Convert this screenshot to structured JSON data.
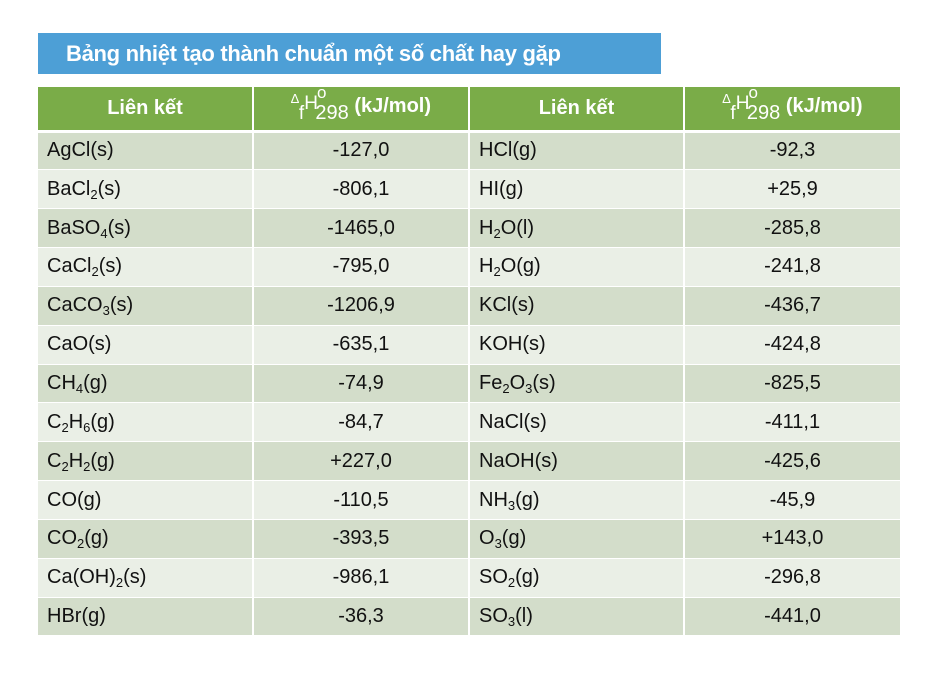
{
  "title": "Bảng nhiệt tạo thành chuẩn một số chất hay gặp",
  "header": {
    "col_name": "Liên kết",
    "col_value": {
      "delta": "∆",
      "f": "f",
      "H": "H",
      "superscript": "o",
      "subscript": "298",
      "unit": "(kJ/mol)"
    }
  },
  "rows": [
    {
      "left": {
        "name": [
          "AgCl(s)"
        ],
        "value": "-127,0"
      },
      "right": {
        "name": [
          "HCl(g)"
        ],
        "value": "-92,3"
      }
    },
    {
      "left": {
        "name": [
          "BaCl",
          "2",
          "(s)"
        ],
        "value": "-806,1"
      },
      "right": {
        "name": [
          "HI(g)"
        ],
        "value": "+25,9"
      }
    },
    {
      "left": {
        "name": [
          "BaSO",
          "4",
          "(s)"
        ],
        "value": "-1465,0"
      },
      "right": {
        "name": [
          "H",
          "2",
          "O(l)"
        ],
        "value": "-285,8"
      }
    },
    {
      "left": {
        "name": [
          "CaCl",
          "2",
          "(s)"
        ],
        "value": "-795,0"
      },
      "right": {
        "name": [
          "H",
          "2",
          "O(g)"
        ],
        "value": "-241,8"
      }
    },
    {
      "left": {
        "name": [
          "CaCO",
          "3",
          "(s)"
        ],
        "value": "-1206,9"
      },
      "right": {
        "name": [
          "KCl(s)"
        ],
        "value": "-436,7"
      }
    },
    {
      "left": {
        "name": [
          "CaO(s)"
        ],
        "value": "-635,1"
      },
      "right": {
        "name": [
          "KOH(s)"
        ],
        "value": "-424,8"
      }
    },
    {
      "left": {
        "name": [
          "CH",
          "4",
          "(g)"
        ],
        "value": "-74,9"
      },
      "right": {
        "name": [
          "Fe",
          "2",
          "O",
          "3",
          "(s)"
        ],
        "value": "-825,5"
      }
    },
    {
      "left": {
        "name": [
          "C",
          "2",
          "H",
          "6",
          "(g)"
        ],
        "value": "-84,7"
      },
      "right": {
        "name": [
          "NaCl(s)"
        ],
        "value": "-411,1"
      }
    },
    {
      "left": {
        "name": [
          "C",
          "2",
          "H",
          "2",
          "(g)"
        ],
        "value": "+227,0"
      },
      "right": {
        "name": [
          "NaOH(s)"
        ],
        "value": "-425,6"
      }
    },
    {
      "left": {
        "name": [
          "CO(g)"
        ],
        "value": "-110,5"
      },
      "right": {
        "name": [
          "NH",
          "3",
          "(g)"
        ],
        "value": "-45,9"
      }
    },
    {
      "left": {
        "name": [
          "CO",
          "2",
          "(g)"
        ],
        "value": "-393,5"
      },
      "right": {
        "name": [
          "O",
          "3",
          "(g)"
        ],
        "value": "+143,0"
      }
    },
    {
      "left": {
        "name": [
          "Ca(OH)",
          "2",
          "(s)"
        ],
        "value": "-986,1"
      },
      "right": {
        "name": [
          "SO",
          "2",
          "(g)"
        ],
        "value": "-296,8"
      }
    },
    {
      "left": {
        "name": [
          "HBr(g)"
        ],
        "value": "-36,3"
      },
      "right": {
        "name": [
          "SO",
          "3",
          "(l)"
        ],
        "value": "-441,0"
      }
    }
  ]
}
